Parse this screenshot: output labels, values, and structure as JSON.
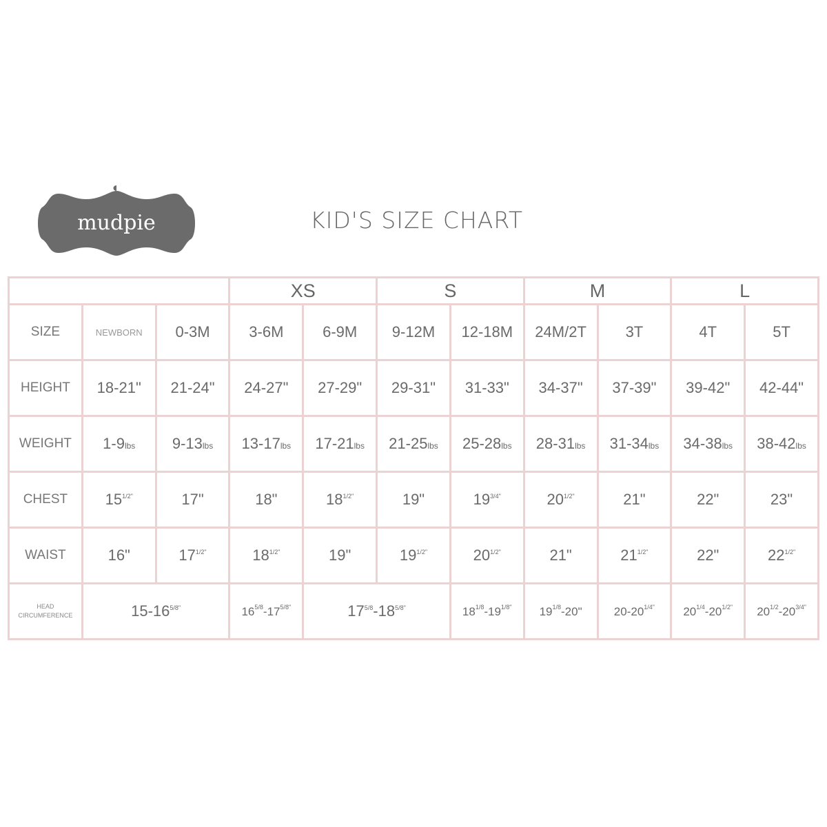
{
  "brand": {
    "logo_text": "mudpie"
  },
  "title": "KID'S SIZE CHART",
  "groups": [
    {
      "label": "",
      "span": 3
    },
    {
      "label": "XS",
      "span": 2
    },
    {
      "label": "S",
      "span": 2
    },
    {
      "label": "M",
      "span": 2
    },
    {
      "label": "L",
      "span": 2
    }
  ],
  "size_row": {
    "label": "SIZE",
    "values": [
      "NEWBORN",
      "0-3M",
      "3-6M",
      "6-9M",
      "9-12M",
      "12-18M",
      "24M/2T",
      "3T",
      "4T",
      "5T"
    ]
  },
  "rows": [
    {
      "label": "HEIGHT",
      "cells": [
        [
          [
            "18-21\"",
            ""
          ]
        ],
        [
          [
            "21-24\"",
            ""
          ]
        ],
        [
          [
            "24-27\"",
            ""
          ]
        ],
        [
          [
            "27-29\"",
            ""
          ]
        ],
        [
          [
            "29-31\"",
            ""
          ]
        ],
        [
          [
            "31-33\"",
            ""
          ]
        ],
        [
          [
            "34-37\"",
            ""
          ]
        ],
        [
          [
            "37-39\"",
            ""
          ]
        ],
        [
          [
            "39-42\"",
            ""
          ]
        ],
        [
          [
            "42-44\"",
            ""
          ]
        ]
      ]
    },
    {
      "label": "WEIGHT",
      "unit": "lbs",
      "cells": [
        [
          [
            "1-9",
            ""
          ]
        ],
        [
          [
            "9-13",
            ""
          ]
        ],
        [
          [
            "13-17",
            ""
          ]
        ],
        [
          [
            "17-21",
            ""
          ]
        ],
        [
          [
            "21-25",
            ""
          ]
        ],
        [
          [
            "25-28",
            ""
          ]
        ],
        [
          [
            "28-31",
            ""
          ]
        ],
        [
          [
            "31-34",
            ""
          ]
        ],
        [
          [
            "34-38",
            ""
          ]
        ],
        [
          [
            "38-42",
            ""
          ]
        ]
      ]
    },
    {
      "label": "CHEST",
      "cells": [
        [
          [
            "15",
            "1/2\""
          ]
        ],
        [
          [
            "17\"",
            ""
          ]
        ],
        [
          [
            "18\"",
            ""
          ]
        ],
        [
          [
            "18",
            "1/2\""
          ]
        ],
        [
          [
            "19\"",
            ""
          ]
        ],
        [
          [
            "19",
            "3/4\""
          ]
        ],
        [
          [
            "20",
            "1/2\""
          ]
        ],
        [
          [
            "21\"",
            ""
          ]
        ],
        [
          [
            "22\"",
            ""
          ]
        ],
        [
          [
            "23\"",
            ""
          ]
        ]
      ]
    },
    {
      "label": "WAIST",
      "cells": [
        [
          [
            "16\"",
            ""
          ]
        ],
        [
          [
            "17",
            "1/2\""
          ]
        ],
        [
          [
            "18",
            "1/2\""
          ]
        ],
        [
          [
            "19\"",
            ""
          ]
        ],
        [
          [
            "19",
            "1/2\""
          ]
        ],
        [
          [
            "20",
            "1/2\""
          ]
        ],
        [
          [
            "21\"",
            ""
          ]
        ],
        [
          [
            "21",
            "1/2\""
          ]
        ],
        [
          [
            "22\"",
            ""
          ]
        ],
        [
          [
            "22",
            "1/2\""
          ]
        ]
      ]
    }
  ],
  "head_row": {
    "label_line1": "HEAD",
    "label_line2": "CIRCUMFERENCE",
    "cells": [
      {
        "span": 2,
        "big": true,
        "parts": [
          [
            "15-16",
            "5/8\""
          ]
        ]
      },
      {
        "span": 1,
        "parts": [
          [
            "16",
            "5/8"
          ],
          [
            "-17",
            "5/8\""
          ]
        ]
      },
      {
        "span": 2,
        "big": true,
        "parts": [
          [
            "17",
            "5/8"
          ],
          [
            "-18",
            "5/8\""
          ]
        ]
      },
      {
        "span": 1,
        "parts": [
          [
            "18",
            "1/8"
          ],
          [
            "-19",
            "1/8\""
          ]
        ]
      },
      {
        "span": 1,
        "parts": [
          [
            "19",
            "1/8"
          ],
          [
            "-20\"",
            ""
          ]
        ]
      },
      {
        "span": 1,
        "parts": [
          [
            "20-20",
            "1/4\""
          ]
        ]
      },
      {
        "span": 1,
        "parts": [
          [
            "20",
            "1/4"
          ],
          [
            "-20",
            "1/2\""
          ]
        ]
      },
      {
        "span": 1,
        "parts": [
          [
            "20",
            "1/2"
          ],
          [
            "-20",
            "3/4\""
          ]
        ]
      }
    ]
  },
  "colors": {
    "border": "#ecd2d2",
    "logo": "#6b6b6b",
    "text": "#6a6a6a"
  }
}
